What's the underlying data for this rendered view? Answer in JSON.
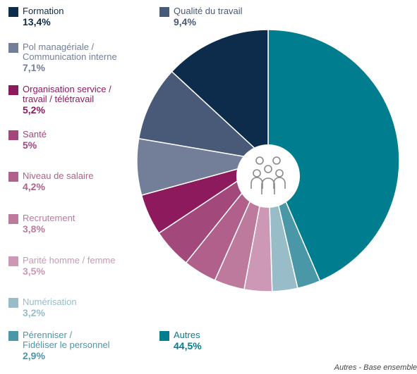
{
  "chart_data": {
    "type": "pie",
    "categories": [
      "Autres",
      "Pérenniser /\nFidéliser le personnel",
      "Numérisation",
      "Parité homme / femme",
      "Recrutement",
      "Niveau de salaire",
      "Santé",
      "Organisation service /\ntravail / télétravail",
      "Pol managériale /\nCommunication interne",
      "Qualité du travail",
      "Formation"
    ],
    "values": [
      44.5,
      2.9,
      3.2,
      3.5,
      3.8,
      4.2,
      5,
      5.2,
      7.1,
      9.4,
      13.4
    ],
    "value_labels": [
      "44,5%",
      "2,9%",
      "3,2%",
      "3,5%",
      "3,8%",
      "4,2%",
      "5%",
      "5,2%",
      "7,1%",
      "9,4%",
      "13,4%"
    ],
    "colors": [
      "#007e8f",
      "#4a97a8",
      "#98bcc8",
      "#cc98b6",
      "#bd7a9c",
      "#b0608a",
      "#a3487a",
      "#8e1a5e",
      "#737f98",
      "#485a78",
      "#0d2b4a"
    ],
    "note": "Autres - Base ensemble"
  }
}
